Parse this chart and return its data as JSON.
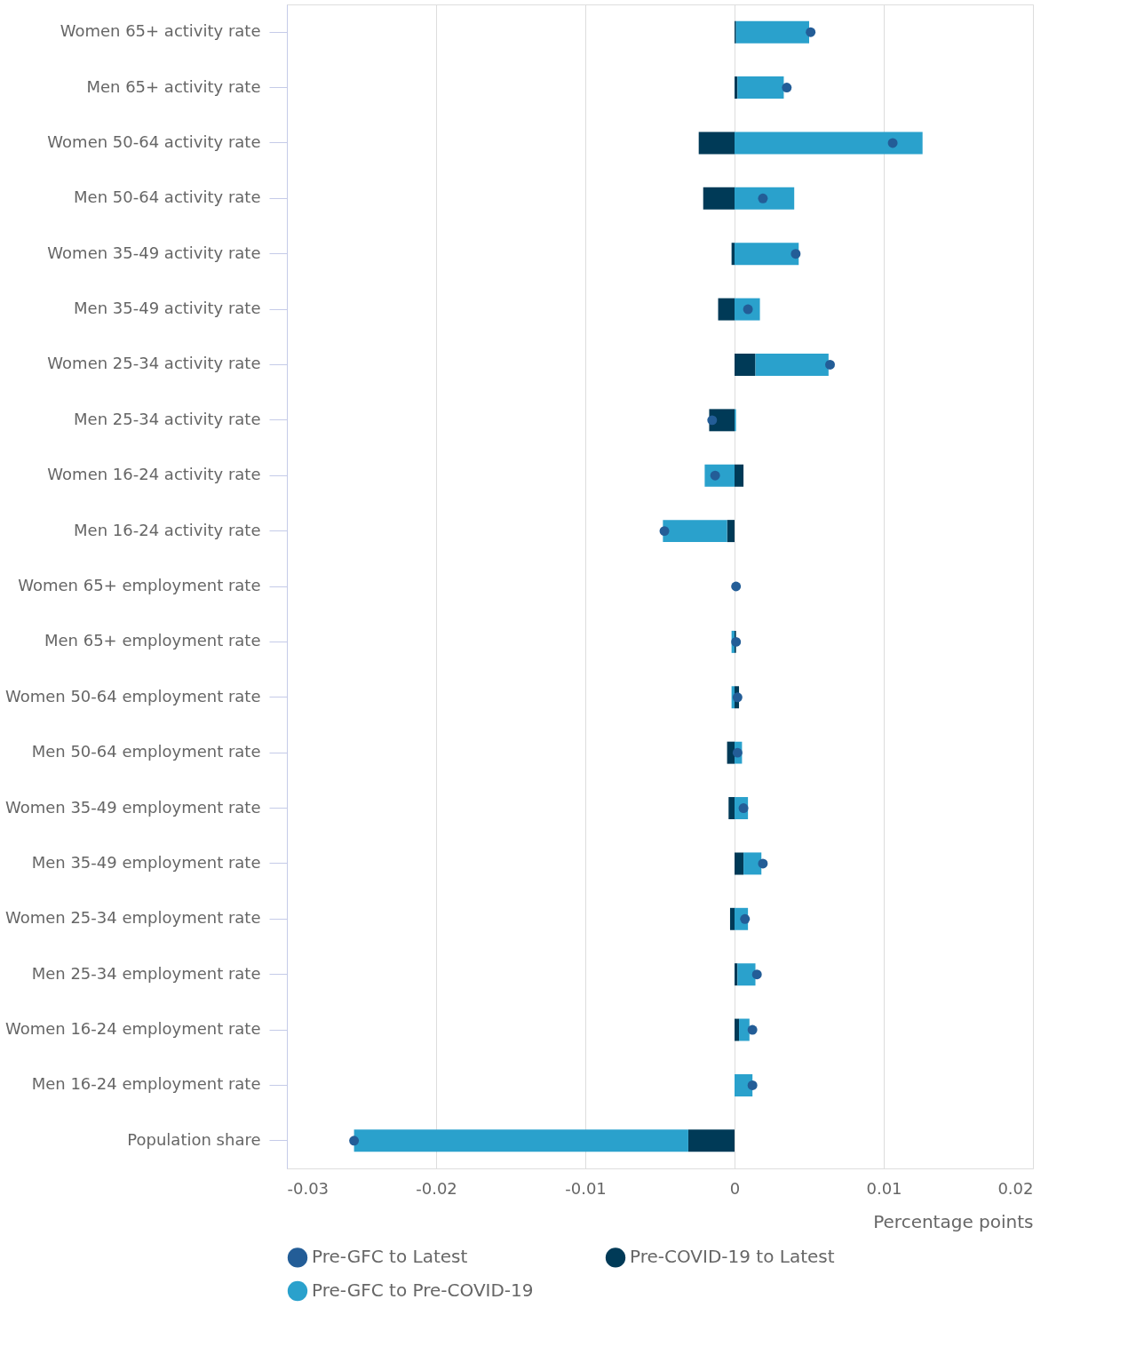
{
  "chart_data": {
    "type": "bar",
    "orientation": "horizontal",
    "stacked": true,
    "xlabel": "Percentage points",
    "categories": [
      "Women 65+ activity rate",
      "Men 65+ activity rate",
      "Women 50-64 activity rate",
      "Men 50-64 activity rate",
      "Women 35-49 activity rate",
      "Men 35-49 activity rate",
      "Women 25-34 activity rate",
      "Men 25-34 activity rate",
      "Women 16-24 activity rate",
      "Men 16-24 activity rate",
      "Women 65+ employment rate",
      "Men 65+ employment rate",
      "Women 50-64 employment rate",
      "Men 50-64 employment rate",
      "Women 35-49 employment rate",
      "Men 35-49 employment rate",
      "Women 25-34 employment rate",
      "Men 25-34 employment rate",
      "Women 16-24 employment rate",
      "Men 16-24 employment rate",
      "Population share"
    ],
    "series": [
      {
        "name": "Pre-GFC to Latest",
        "type": "scatter",
        "marker": "circle",
        "color": "#235d97",
        "values": [
          0.0051,
          0.0035,
          0.0106,
          0.0019,
          0.0041,
          0.0009,
          0.0064,
          -0.0015,
          -0.0013,
          -0.0047,
          0.0001,
          0.0001,
          0.0002,
          0.0002,
          0.0006,
          0.0019,
          0.0007,
          0.0015,
          0.0012,
          0.0012,
          -0.0255
        ]
      },
      {
        "name": "Pre-COVID-19 to Latest",
        "color": "#003a57",
        "values": [
          0.0001,
          0.0002,
          -0.0024,
          -0.0021,
          -0.0002,
          -0.0011,
          0.0014,
          -0.0017,
          0.0006,
          -0.0005,
          0,
          0.0001,
          0.0003,
          -0.0005,
          -0.0004,
          0.0006,
          -0.0003,
          0.0002,
          0.0003,
          0,
          -0.0031
        ]
      },
      {
        "name": "Pre-GFC to Pre-COVID-19",
        "color": "#2aa1cc",
        "values": [
          0.0049,
          0.0031,
          0.0126,
          0.004,
          0.0043,
          0.0017,
          0.0049,
          0.0001,
          -0.002,
          -0.0043,
          0,
          -0.0002,
          -0.0002,
          0.0005,
          0.0009,
          0.0012,
          0.0009,
          0.0012,
          0.0007,
          0.0012,
          -0.0224
        ]
      }
    ],
    "xlim": [
      -0.03,
      0.02
    ],
    "xticks": [
      -0.03,
      -0.02,
      -0.01,
      0,
      0.01,
      0.02
    ],
    "grid": "x",
    "legend": "bottom"
  }
}
